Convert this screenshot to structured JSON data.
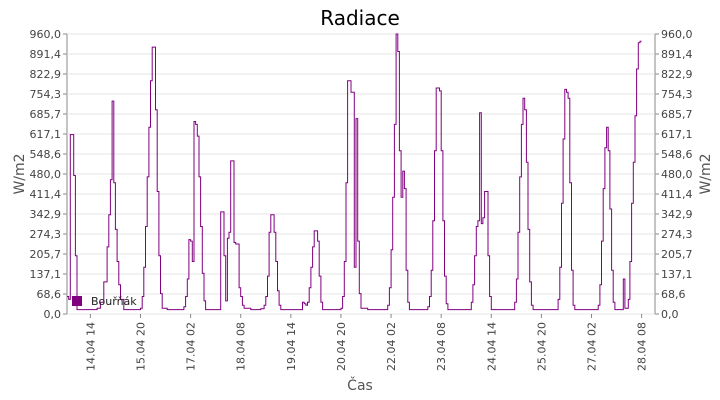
{
  "chart_data": {
    "type": "line",
    "title": "Radiace",
    "xlabel": "Čas",
    "ylabel": "W/m2",
    "ylabel_right": "W/m2",
    "ylim": [
      0,
      960
    ],
    "yticks": [
      "0,0",
      "68,6",
      "137,1",
      "205,7",
      "274,3",
      "342,9",
      "411,4",
      "480,0",
      "548,6",
      "617,1",
      "685,7",
      "754,3",
      "822,9",
      "891,4",
      "960,0"
    ],
    "xlim": [
      "2014-04-14T00:00",
      "2014-04-28T16:00"
    ],
    "xticks": [
      {
        "t": "2014-04-14T14:00",
        "label": "14.04 14"
      },
      {
        "t": "2014-04-15T20:00",
        "label": "15.04 20"
      },
      {
        "t": "2014-04-17T02:00",
        "label": "17.04 02"
      },
      {
        "t": "2014-04-18T08:00",
        "label": "18.04 08"
      },
      {
        "t": "2014-04-19T14:00",
        "label": "19.04 14"
      },
      {
        "t": "2014-04-20T20:00",
        "label": "20.04 20"
      },
      {
        "t": "2014-04-22T02:00",
        "label": "22.04 02"
      },
      {
        "t": "2014-04-23T08:00",
        "label": "23.04 08"
      },
      {
        "t": "2014-04-24T14:00",
        "label": "24.04 14"
      },
      {
        "t": "2014-04-25T20:00",
        "label": "25.04 20"
      },
      {
        "t": "2014-04-27T02:00",
        "label": "27.04 02"
      },
      {
        "t": "2014-04-28T08:00",
        "label": "28.04 08"
      }
    ],
    "grid": true,
    "legend_position": "bottom-left",
    "series": [
      {
        "name": "Bouřňák",
        "color": "#800080",
        "points": [
          [
            "2014-04-14T00:00",
            60
          ],
          [
            "2014-04-14T01:00",
            50
          ],
          [
            "2014-04-14T02:00",
            615
          ],
          [
            "2014-04-14T03:00",
            615
          ],
          [
            "2014-04-14T04:00",
            475
          ],
          [
            "2014-04-14T05:00",
            200
          ],
          [
            "2014-04-14T06:00",
            15
          ],
          [
            "2014-04-14T08:00",
            15
          ],
          [
            "2014-04-14T10:00",
            15
          ],
          [
            "2014-04-14T12:00",
            15
          ],
          [
            "2014-04-14T14:00",
            15
          ],
          [
            "2014-04-14T16:00",
            15
          ],
          [
            "2014-04-14T18:00",
            20
          ],
          [
            "2014-04-14T20:00",
            40
          ],
          [
            "2014-04-14T22:00",
            110
          ],
          [
            "2014-04-15T00:00",
            230
          ],
          [
            "2014-04-15T01:00",
            340
          ],
          [
            "2014-04-15T02:00",
            460
          ],
          [
            "2014-04-15T03:00",
            730
          ],
          [
            "2014-04-15T04:00",
            450
          ],
          [
            "2014-04-15T05:00",
            290
          ],
          [
            "2014-04-15T06:00",
            180
          ],
          [
            "2014-04-15T07:00",
            100
          ],
          [
            "2014-04-15T08:00",
            50
          ],
          [
            "2014-04-15T10:00",
            15
          ],
          [
            "2014-04-15T14:00",
            15
          ],
          [
            "2014-04-15T18:00",
            15
          ],
          [
            "2014-04-15T20:00",
            20
          ],
          [
            "2014-04-15T21:00",
            60
          ],
          [
            "2014-04-15T22:00",
            160
          ],
          [
            "2014-04-15T23:00",
            300
          ],
          [
            "2014-04-16T00:00",
            470
          ],
          [
            "2014-04-16T01:00",
            640
          ],
          [
            "2014-04-16T02:00",
            800
          ],
          [
            "2014-04-16T03:00",
            915
          ],
          [
            "2014-04-16T04:00",
            915
          ],
          [
            "2014-04-16T05:00",
            700
          ],
          [
            "2014-04-16T06:00",
            420
          ],
          [
            "2014-04-16T07:00",
            200
          ],
          [
            "2014-04-16T08:00",
            70
          ],
          [
            "2014-04-16T09:00",
            20
          ],
          [
            "2014-04-16T12:00",
            15
          ],
          [
            "2014-04-16T16:00",
            15
          ],
          [
            "2014-04-16T20:00",
            15
          ],
          [
            "2014-04-16T22:00",
            25
          ],
          [
            "2014-04-16T23:00",
            60
          ],
          [
            "2014-04-17T00:00",
            120
          ],
          [
            "2014-04-17T01:00",
            255
          ],
          [
            "2014-04-17T02:00",
            250
          ],
          [
            "2014-04-17T03:00",
            180
          ],
          [
            "2014-04-17T04:00",
            660
          ],
          [
            "2014-04-17T05:00",
            650
          ],
          [
            "2014-04-17T06:00",
            610
          ],
          [
            "2014-04-17T07:00",
            470
          ],
          [
            "2014-04-17T08:00",
            300
          ],
          [
            "2014-04-17T09:00",
            140
          ],
          [
            "2014-04-17T10:00",
            45
          ],
          [
            "2014-04-17T11:00",
            15
          ],
          [
            "2014-04-17T14:00",
            15
          ],
          [
            "2014-04-17T18:00",
            15
          ],
          [
            "2014-04-17T19:00",
            15
          ],
          [
            "2014-04-17T20:00",
            350
          ],
          [
            "2014-04-17T21:00",
            350
          ],
          [
            "2014-04-17T22:00",
            200
          ],
          [
            "2014-04-17T23:00",
            45
          ],
          [
            "2014-04-18T00:00",
            260
          ],
          [
            "2014-04-18T01:00",
            280
          ],
          [
            "2014-04-18T02:00",
            525
          ],
          [
            "2014-04-18T03:00",
            525
          ],
          [
            "2014-04-18T04:00",
            245
          ],
          [
            "2014-04-18T05:00",
            240
          ],
          [
            "2014-04-18T06:00",
            240
          ],
          [
            "2014-04-18T07:00",
            90
          ],
          [
            "2014-04-18T08:00",
            60
          ],
          [
            "2014-04-18T09:00",
            30
          ],
          [
            "2014-04-18T10:00",
            20
          ],
          [
            "2014-04-18T14:00",
            15
          ],
          [
            "2014-04-18T18:00",
            15
          ],
          [
            "2014-04-18T20:00",
            18
          ],
          [
            "2014-04-18T22:00",
            30
          ],
          [
            "2014-04-18T23:00",
            60
          ],
          [
            "2014-04-19T00:00",
            130
          ],
          [
            "2014-04-19T01:00",
            280
          ],
          [
            "2014-04-19T02:00",
            340
          ],
          [
            "2014-04-19T03:00",
            340
          ],
          [
            "2014-04-19T04:00",
            280
          ],
          [
            "2014-04-19T05:00",
            180
          ],
          [
            "2014-04-19T06:00",
            80
          ],
          [
            "2014-04-19T07:00",
            30
          ],
          [
            "2014-04-19T08:00",
            15
          ],
          [
            "2014-04-19T12:00",
            15
          ],
          [
            "2014-04-19T16:00",
            15
          ],
          [
            "2014-04-19T18:00",
            15
          ],
          [
            "2014-04-19T20:00",
            15
          ],
          [
            "2014-04-19T21:00",
            40
          ],
          [
            "2014-04-19T22:00",
            35
          ],
          [
            "2014-04-19T23:00",
            30
          ],
          [
            "2014-04-20T00:00",
            40
          ],
          [
            "2014-04-20T01:00",
            90
          ],
          [
            "2014-04-20T02:00",
            160
          ],
          [
            "2014-04-20T03:00",
            230
          ],
          [
            "2014-04-20T04:00",
            285
          ],
          [
            "2014-04-20T05:00",
            285
          ],
          [
            "2014-04-20T06:00",
            250
          ],
          [
            "2014-04-20T07:00",
            130
          ],
          [
            "2014-04-20T08:00",
            40
          ],
          [
            "2014-04-20T09:00",
            15
          ],
          [
            "2014-04-20T12:00",
            15
          ],
          [
            "2014-04-20T16:00",
            15
          ],
          [
            "2014-04-20T18:00",
            15
          ],
          [
            "2014-04-20T20:00",
            20
          ],
          [
            "2014-04-20T21:00",
            60
          ],
          [
            "2014-04-20T22:00",
            180
          ],
          [
            "2014-04-20T23:00",
            450
          ],
          [
            "2014-04-21T00:00",
            800
          ],
          [
            "2014-04-21T01:00",
            800
          ],
          [
            "2014-04-21T02:00",
            760
          ],
          [
            "2014-04-21T03:00",
            760
          ],
          [
            "2014-04-21T04:00",
            160
          ],
          [
            "2014-04-21T05:00",
            670
          ],
          [
            "2014-04-21T06:00",
            250
          ],
          [
            "2014-04-21T07:00",
            70
          ],
          [
            "2014-04-21T08:00",
            20
          ],
          [
            "2014-04-21T12:00",
            15
          ],
          [
            "2014-04-21T16:00",
            15
          ],
          [
            "2014-04-21T20:00",
            15
          ],
          [
            "2014-04-21T22:00",
            15
          ],
          [
            "2014-04-22T00:00",
            30
          ],
          [
            "2014-04-22T01:00",
            90
          ],
          [
            "2014-04-22T02:00",
            220
          ],
          [
            "2014-04-22T03:00",
            400
          ],
          [
            "2014-04-22T04:00",
            650
          ],
          [
            "2014-04-22T05:00",
            960
          ],
          [
            "2014-04-22T06:00",
            900
          ],
          [
            "2014-04-22T07:00",
            560
          ],
          [
            "2014-04-22T08:00",
            400
          ],
          [
            "2014-04-22T09:00",
            490
          ],
          [
            "2014-04-22T10:00",
            430
          ],
          [
            "2014-04-22T11:00",
            150
          ],
          [
            "2014-04-22T12:00",
            40
          ],
          [
            "2014-04-22T13:00",
            15
          ],
          [
            "2014-04-22T16:00",
            15
          ],
          [
            "2014-04-22T20:00",
            15
          ],
          [
            "2014-04-22T23:00",
            15
          ],
          [
            "2014-04-23T00:00",
            25
          ],
          [
            "2014-04-23T01:00",
            60
          ],
          [
            "2014-04-23T02:00",
            150
          ],
          [
            "2014-04-23T03:00",
            320
          ],
          [
            "2014-04-23T04:00",
            560
          ],
          [
            "2014-04-23T05:00",
            775
          ],
          [
            "2014-04-23T06:00",
            775
          ],
          [
            "2014-04-23T07:00",
            765
          ],
          [
            "2014-04-23T08:00",
            560
          ],
          [
            "2014-04-23T09:00",
            320
          ],
          [
            "2014-04-23T10:00",
            130
          ],
          [
            "2014-04-23T11:00",
            35
          ],
          [
            "2014-04-23T12:00",
            15
          ],
          [
            "2014-04-23T16:00",
            15
          ],
          [
            "2014-04-23T20:00",
            15
          ],
          [
            "2014-04-24T00:00",
            15
          ],
          [
            "2014-04-24T02:00",
            40
          ],
          [
            "2014-04-24T03:00",
            100
          ],
          [
            "2014-04-24T04:00",
            200
          ],
          [
            "2014-04-24T05:00",
            300
          ],
          [
            "2014-04-24T06:00",
            320
          ],
          [
            "2014-04-24T07:00",
            690
          ],
          [
            "2014-04-24T08:00",
            310
          ],
          [
            "2014-04-24T09:00",
            330
          ],
          [
            "2014-04-24T10:00",
            420
          ],
          [
            "2014-04-24T11:00",
            420
          ],
          [
            "2014-04-24T12:00",
            200
          ],
          [
            "2014-04-24T13:00",
            60
          ],
          [
            "2014-04-24T14:00",
            15
          ],
          [
            "2014-04-24T18:00",
            15
          ],
          [
            "2014-04-24T22:00",
            15
          ],
          [
            "2014-04-25T02:00",
            15
          ],
          [
            "2014-04-25T04:00",
            40
          ],
          [
            "2014-04-25T05:00",
            120
          ],
          [
            "2014-04-25T06:00",
            280
          ],
          [
            "2014-04-25T07:00",
            470
          ],
          [
            "2014-04-25T08:00",
            650
          ],
          [
            "2014-04-25T09:00",
            740
          ],
          [
            "2014-04-25T10:00",
            700
          ],
          [
            "2014-04-25T11:00",
            520
          ],
          [
            "2014-04-25T12:00",
            290
          ],
          [
            "2014-04-25T13:00",
            110
          ],
          [
            "2014-04-25T14:00",
            30
          ],
          [
            "2014-04-25T15:00",
            15
          ],
          [
            "2014-04-25T20:00",
            15
          ],
          [
            "2014-04-26T00:00",
            15
          ],
          [
            "2014-04-26T04:00",
            15
          ],
          [
            "2014-04-26T06:00",
            50
          ],
          [
            "2014-04-26T07:00",
            160
          ],
          [
            "2014-04-26T08:00",
            380
          ],
          [
            "2014-04-26T09:00",
            600
          ],
          [
            "2014-04-26T10:00",
            770
          ],
          [
            "2014-04-26T11:00",
            760
          ],
          [
            "2014-04-26T12:00",
            740
          ],
          [
            "2014-04-26T13:00",
            450
          ],
          [
            "2014-04-26T14:00",
            150
          ],
          [
            "2014-04-26T15:00",
            30
          ],
          [
            "2014-04-26T16:00",
            15
          ],
          [
            "2014-04-26T20:00",
            15
          ],
          [
            "2014-04-27T00:00",
            15
          ],
          [
            "2014-04-27T04:00",
            15
          ],
          [
            "2014-04-27T06:00",
            30
          ],
          [
            "2014-04-27T07:00",
            100
          ],
          [
            "2014-04-27T08:00",
            250
          ],
          [
            "2014-04-27T09:00",
            430
          ],
          [
            "2014-04-27T10:00",
            570
          ],
          [
            "2014-04-27T11:00",
            640
          ],
          [
            "2014-04-27T12:00",
            560
          ],
          [
            "2014-04-27T13:00",
            360
          ],
          [
            "2014-04-27T14:00",
            150
          ],
          [
            "2014-04-27T15:00",
            40
          ],
          [
            "2014-04-27T16:00",
            15
          ],
          [
            "2014-04-27T19:00",
            15
          ],
          [
            "2014-04-27T20:00",
            15
          ],
          [
            "2014-04-27T21:00",
            120
          ],
          [
            "2014-04-27T22:00",
            20
          ],
          [
            "2014-04-27T23:00",
            20
          ],
          [
            "2014-04-28T00:00",
            50
          ],
          [
            "2014-04-28T01:00",
            180
          ],
          [
            "2014-04-28T02:00",
            380
          ],
          [
            "2014-04-28T03:00",
            520
          ],
          [
            "2014-04-28T04:00",
            680
          ],
          [
            "2014-04-28T05:00",
            840
          ],
          [
            "2014-04-28T06:00",
            930
          ],
          [
            "2014-04-28T07:00",
            935
          ],
          [
            "2014-04-28T08:00",
            935
          ]
        ]
      }
    ]
  }
}
